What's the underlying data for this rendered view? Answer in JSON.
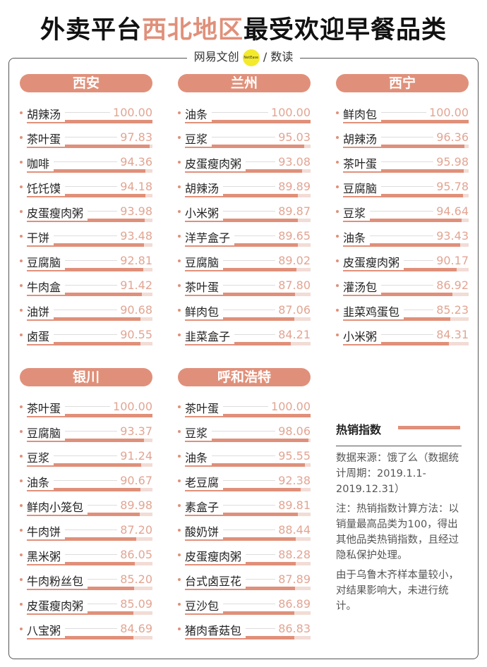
{
  "title": {
    "part1": "外卖平台",
    "highlight": "西北地区",
    "part2": "最受欢迎早餐品类"
  },
  "logo": {
    "left": "网易文创",
    "badge": "NetEase",
    "right": "/ 数读"
  },
  "colors": {
    "accent": "#e0907a",
    "track": "#f2dcd5",
    "value_text": "#e2a593"
  },
  "legend": {
    "title": "热销指数",
    "source": "数据来源：饿了么（数据统计周期：2019.1.1-2019.12.31）",
    "note": "注：热销指数计算方法：以销量最高品类为100，得出其他品类热销指数，且经过隐私保护处理。",
    "note2": "由于乌鲁木齐样本量较小，对结果影响大，未进行统计。"
  },
  "chart_data": [
    {
      "type": "bar",
      "title": "西安",
      "xlim": [
        0,
        100
      ],
      "categories": [
        "胡辣汤",
        "茶叶蛋",
        "咖啡",
        "饦饦馍",
        "皮蛋瘦肉粥",
        "干饼",
        "豆腐脑",
        "牛肉盒",
        "油饼",
        "卤蛋"
      ],
      "values": [
        100.0,
        97.83,
        94.36,
        94.18,
        93.98,
        93.48,
        92.81,
        91.42,
        90.68,
        90.55
      ]
    },
    {
      "type": "bar",
      "title": "兰州",
      "xlim": [
        0,
        100
      ],
      "categories": [
        "油条",
        "豆浆",
        "皮蛋瘦肉粥",
        "胡辣汤",
        "小米粥",
        "洋芋盒子",
        "豆腐脑",
        "茶叶蛋",
        "鲜肉包",
        "韭菜盒子"
      ],
      "values": [
        100.0,
        95.03,
        93.08,
        89.89,
        89.87,
        89.65,
        89.02,
        87.8,
        87.06,
        84.21
      ]
    },
    {
      "type": "bar",
      "title": "西宁",
      "xlim": [
        0,
        100
      ],
      "categories": [
        "鲜肉包",
        "胡辣汤",
        "茶叶蛋",
        "豆腐脑",
        "豆浆",
        "油条",
        "皮蛋瘦肉粥",
        "灌汤包",
        "韭菜鸡蛋包",
        "小米粥"
      ],
      "values": [
        100.0,
        96.36,
        95.98,
        95.78,
        94.64,
        93.43,
        90.17,
        86.92,
        85.23,
        84.31
      ]
    },
    {
      "type": "bar",
      "title": "银川",
      "xlim": [
        0,
        100
      ],
      "categories": [
        "茶叶蛋",
        "豆腐脑",
        "豆浆",
        "油条",
        "鲜肉小笼包",
        "牛肉饼",
        "黑米粥",
        "牛肉粉丝包",
        "皮蛋瘦肉粥",
        "八宝粥"
      ],
      "values": [
        100.0,
        93.37,
        91.24,
        90.67,
        89.98,
        87.2,
        86.05,
        85.2,
        85.09,
        84.69
      ]
    },
    {
      "type": "bar",
      "title": "呼和浩特",
      "xlim": [
        0,
        100
      ],
      "categories": [
        "茶叶蛋",
        "豆浆",
        "油条",
        "老豆腐",
        "素盒子",
        "酸奶饼",
        "皮蛋瘦肉粥",
        "台式卤豆花",
        "豆沙包",
        "猪肉香菇包"
      ],
      "values": [
        100.0,
        98.06,
        95.55,
        92.38,
        89.81,
        88.44,
        88.28,
        87.89,
        86.89,
        86.83
      ]
    }
  ]
}
